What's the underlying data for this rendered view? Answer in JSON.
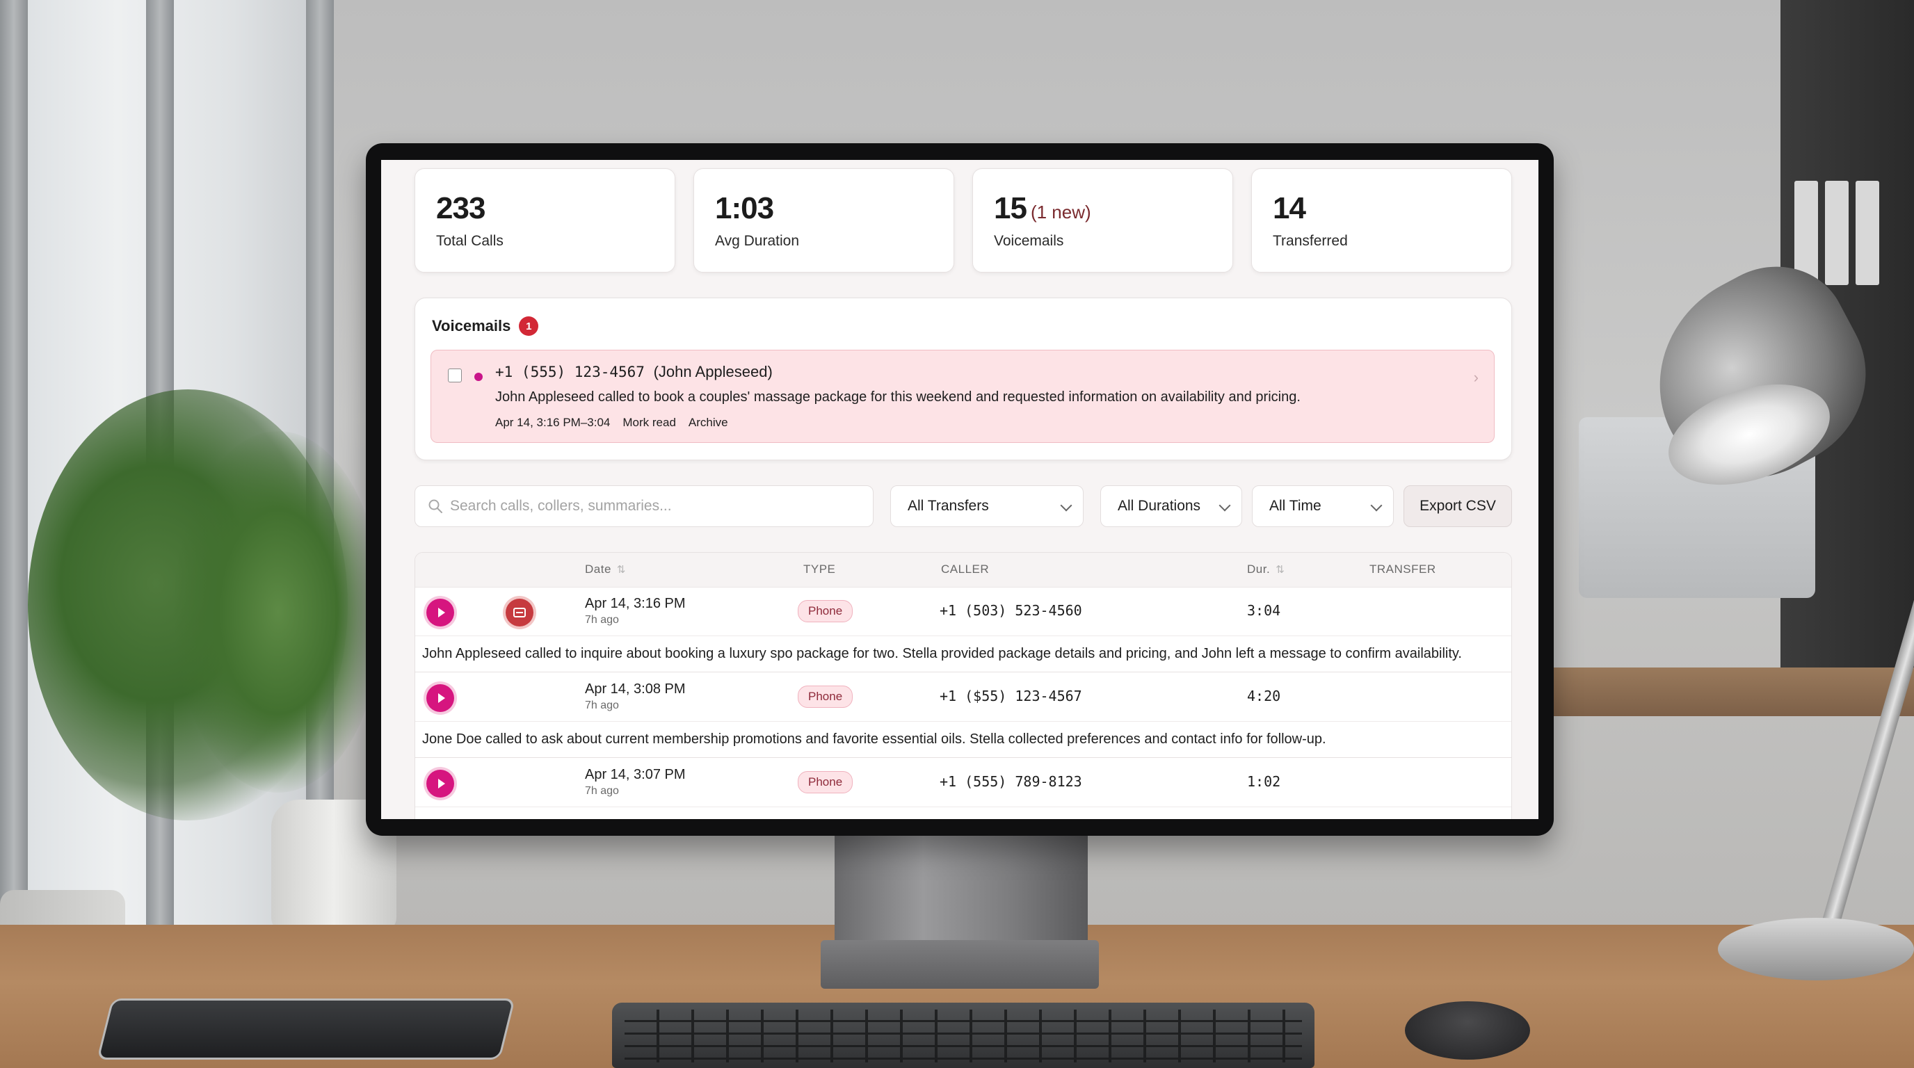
{
  "stats": [
    {
      "value": "233",
      "label": "Total Calls",
      "extra": ""
    },
    {
      "value": "1:03",
      "label": "Avg Duration",
      "extra": ""
    },
    {
      "value": "15",
      "label": "Voicemails",
      "extra": "(1 new)"
    },
    {
      "value": "14",
      "label": "Transferred",
      "extra": ""
    }
  ],
  "voicemails": {
    "title": "Voicemails",
    "badge": "1",
    "item": {
      "phone": "+1 (555) 123-4567",
      "name": "(John Appleseed)",
      "summary": "John Appleseed called to book a couples' massage package for this weekend and requested information on availability and pricing.",
      "time": "Apr 14, 3:16 PM–3:04",
      "mark_read": "Mork read",
      "archive": "Archive"
    }
  },
  "toolbar": {
    "search_placeholder": "Search calls, collers, summaries...",
    "filter_transfers": "All Transfers",
    "filter_durations": "All Durations",
    "filter_time": "All Time",
    "export_label": "Export CSV"
  },
  "table": {
    "headers": {
      "date": "Date",
      "type": "TYPE",
      "caller": "CALLER",
      "dur": "Dur.",
      "transfer": "TRANSFER"
    },
    "rows": [
      {
        "date": "Apr 14, 3:16 PM",
        "ago": "7h  ago",
        "type": "Phone",
        "caller": "+1 (503) 523-4560",
        "dur": "3:04",
        "summary": "John Appleseed called to inquire about booking a luxury spo package for two. Stella provided package details and pricing, and John left a message to confirm availability."
      },
      {
        "date": "Apr 14, 3:08 PM",
        "ago": "7h  ago",
        "type": "Phone",
        "caller": "+1 ($55) 123-4567",
        "dur": "4:20",
        "summary": "Jone Doe called to ask about current membership promotions and favorite essential oils. Stella collected  preferences and contact info for follow-up."
      },
      {
        "date": "Apr 14, 3:07 PM",
        "ago": "7h  ago",
        "type": "Phone",
        "caller": "+1 (555) 789-8123",
        "dur": "1:02"
      }
    ]
  },
  "colors": {
    "accent": "#d6157f",
    "voicemail_bg": "#fde3e6",
    "badge_red": "#d22836"
  },
  "icons": [
    "search-icon",
    "play-icon",
    "voicemail-icon",
    "chevron-down-icon",
    "chevron-right-icon",
    "sort-icon"
  ]
}
